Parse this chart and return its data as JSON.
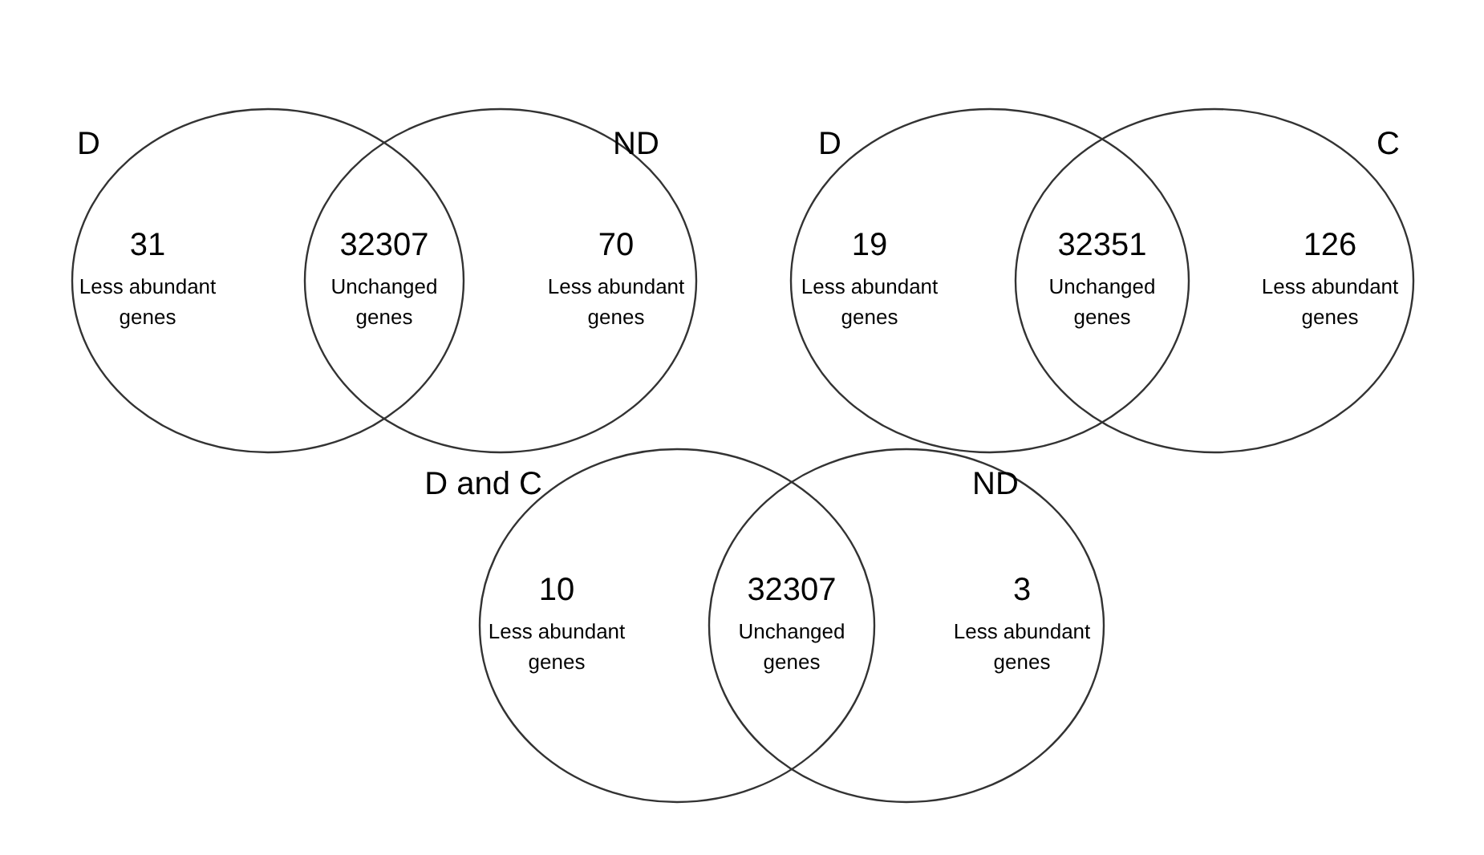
{
  "chart_data": [
    {
      "type": "other",
      "categories": [
        "Less abundant genes",
        "Unchanged genes",
        "Less abundant genes"
      ],
      "values": [
        31,
        32307,
        70
      ],
      "data_labels": true,
      "annotations": [
        "D",
        "ND"
      ]
    },
    {
      "type": "other",
      "categories": [
        "Less abundant genes",
        "Unchanged genes",
        "Less abundant genes"
      ],
      "values": [
        19,
        32351,
        126
      ],
      "data_labels": true,
      "annotations": [
        "D",
        "C"
      ]
    },
    {
      "type": "other",
      "categories": [
        "Less abundant genes",
        "Unchanged genes",
        "Less abundant genes"
      ],
      "values": [
        10,
        32307,
        3
      ],
      "data_labels": true,
      "annotations": [
        "D and C",
        "ND"
      ]
    }
  ]
}
